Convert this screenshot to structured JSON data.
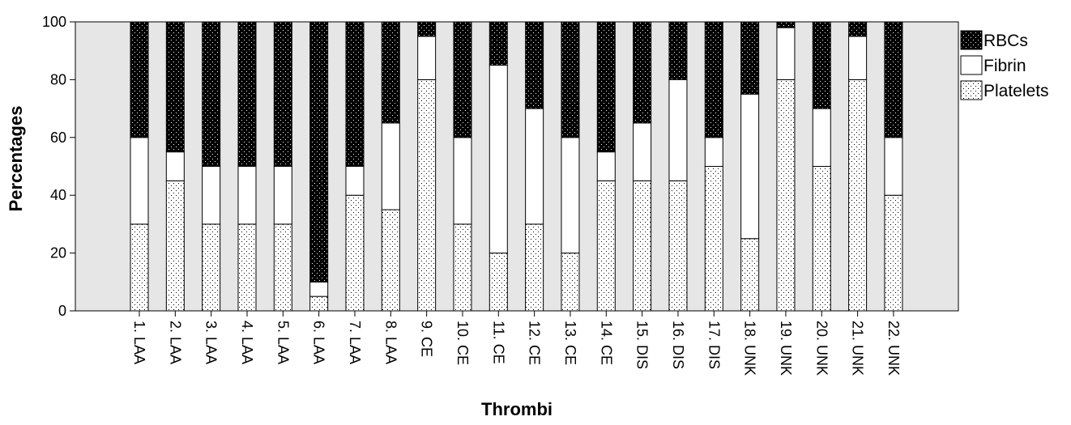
{
  "chart_data": {
    "type": "bar",
    "stacked": true,
    "title": "",
    "xlabel": "Thrombi",
    "ylabel": "Percentages",
    "ylim": [
      0,
      100
    ],
    "yticks": [
      0,
      20,
      40,
      60,
      80,
      100
    ],
    "grid": false,
    "legend_position": "right",
    "categories": [
      "1. LAA",
      "2. LAA",
      "3. LAA",
      "4. LAA",
      "5. LAA",
      "6. LAA",
      "7. LAA",
      "8. LAA",
      "9. CE",
      "10. CE",
      "11. CE",
      "12. CE",
      "13. CE",
      "14. CE",
      "15. DIS",
      "16. DIS",
      "17. DIS",
      "18. UNK",
      "19. UNK",
      "20. UNK",
      "21. UNK",
      "22. UNK"
    ],
    "series": [
      {
        "name": "Platelets",
        "pattern": "light-dots",
        "values": [
          30,
          45,
          30,
          30,
          30,
          5,
          40,
          35,
          80,
          30,
          20,
          30,
          20,
          45,
          45,
          45,
          50,
          25,
          80,
          50,
          80,
          40
        ]
      },
      {
        "name": "Fibrin",
        "pattern": "white",
        "values": [
          30,
          10,
          20,
          20,
          20,
          5,
          10,
          30,
          15,
          30,
          65,
          40,
          40,
          10,
          20,
          35,
          10,
          50,
          18,
          20,
          15,
          20
        ]
      },
      {
        "name": "RBCs",
        "pattern": "dark-dots",
        "values": [
          40,
          45,
          50,
          50,
          50,
          90,
          50,
          35,
          5,
          40,
          15,
          30,
          40,
          45,
          35,
          20,
          40,
          25,
          2,
          30,
          5,
          40
        ]
      }
    ],
    "legend_order": [
      "RBCs",
      "Fibrin",
      "Platelets"
    ],
    "colors": {
      "plot_background": "#e6e6e6",
      "bar_stroke": "#000000",
      "white_fill": "#ffffff",
      "dark_fill": "#000000"
    }
  }
}
